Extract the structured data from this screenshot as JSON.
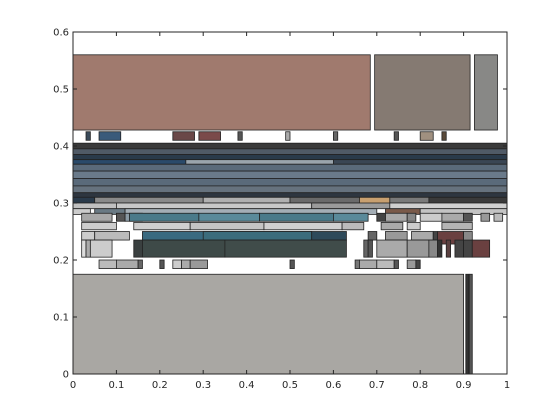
{
  "chart_data": {
    "type": "treemap",
    "xlim": [
      0,
      1
    ],
    "ylim": [
      0,
      0.6
    ],
    "x_ticks": [
      "0",
      "0.1",
      "0.2",
      "0.3",
      "0.4",
      "0.5",
      "0.6",
      "0.7",
      "0.8",
      "0.9",
      "1"
    ],
    "y_ticks": [
      "0",
      "0.1",
      "0.2",
      "0.3",
      "0.4",
      "0.5",
      "0.6"
    ],
    "grid": false,
    "rectangles": [
      {
        "x0": 0.0,
        "x1": 0.685,
        "y0": 0.428,
        "y1": 0.56,
        "color": "#a07a6e"
      },
      {
        "x0": 0.695,
        "x1": 0.915,
        "y0": 0.428,
        "y1": 0.56,
        "color": "#857a72"
      },
      {
        "x0": 0.925,
        "x1": 0.978,
        "y0": 0.428,
        "y1": 0.56,
        "color": "#888886"
      },
      {
        "x0": 0.03,
        "x1": 0.04,
        "y0": 0.41,
        "y1": 0.425,
        "color": "#3a4a5a"
      },
      {
        "x0": 0.06,
        "x1": 0.11,
        "y0": 0.41,
        "y1": 0.425,
        "color": "#3a5a7a"
      },
      {
        "x0": 0.23,
        "x1": 0.28,
        "y0": 0.41,
        "y1": 0.425,
        "color": "#6a4848"
      },
      {
        "x0": 0.29,
        "x1": 0.34,
        "y0": 0.41,
        "y1": 0.425,
        "color": "#7a4a4a"
      },
      {
        "x0": 0.38,
        "x1": 0.39,
        "y0": 0.41,
        "y1": 0.425,
        "color": "#555555"
      },
      {
        "x0": 0.49,
        "x1": 0.5,
        "y0": 0.41,
        "y1": 0.425,
        "color": "#aaaaaa"
      },
      {
        "x0": 0.6,
        "x1": 0.61,
        "y0": 0.41,
        "y1": 0.425,
        "color": "#666666"
      },
      {
        "x0": 0.74,
        "x1": 0.75,
        "y0": 0.41,
        "y1": 0.425,
        "color": "#555555"
      },
      {
        "x0": 0.8,
        "x1": 0.83,
        "y0": 0.41,
        "y1": 0.425,
        "color": "#a09080"
      },
      {
        "x0": 0.85,
        "x1": 0.86,
        "y0": 0.41,
        "y1": 0.425,
        "color": "#5a4a3a"
      },
      {
        "x0": 0.0,
        "x1": 1.0,
        "y0": 0.395,
        "y1": 0.405,
        "color": "#3a3a3a"
      },
      {
        "x0": 0.0,
        "x1": 1.0,
        "y0": 0.385,
        "y1": 0.395,
        "color": "#505a66"
      },
      {
        "x0": 0.0,
        "x1": 1.0,
        "y0": 0.376,
        "y1": 0.385,
        "color": "#2a3a4a"
      },
      {
        "x0": 0.0,
        "x1": 0.26,
        "y0": 0.368,
        "y1": 0.376,
        "color": "#2a4a6a"
      },
      {
        "x0": 0.26,
        "x1": 0.6,
        "y0": 0.368,
        "y1": 0.376,
        "color": "#9aa4ac"
      },
      {
        "x0": 0.6,
        "x1": 1.0,
        "y0": 0.368,
        "y1": 0.376,
        "color": "#3a4654"
      },
      {
        "x0": 0.0,
        "x1": 1.0,
        "y0": 0.356,
        "y1": 0.368,
        "color": "#5a6a7a"
      },
      {
        "x0": 0.0,
        "x1": 1.0,
        "y0": 0.343,
        "y1": 0.356,
        "color": "#6a7a8a"
      },
      {
        "x0": 0.0,
        "x1": 1.0,
        "y0": 0.33,
        "y1": 0.343,
        "color": "#5a6a7a"
      },
      {
        "x0": 0.0,
        "x1": 1.0,
        "y0": 0.318,
        "y1": 0.33,
        "color": "#66727e"
      },
      {
        "x0": 0.0,
        "x1": 1.0,
        "y0": 0.31,
        "y1": 0.318,
        "color": "#2e3640"
      },
      {
        "x0": 0.0,
        "x1": 0.05,
        "y0": 0.3,
        "y1": 0.31,
        "color": "#2a3a4a"
      },
      {
        "x0": 0.05,
        "x1": 0.3,
        "y0": 0.3,
        "y1": 0.31,
        "color": "#8a8a8a"
      },
      {
        "x0": 0.3,
        "x1": 0.5,
        "y0": 0.3,
        "y1": 0.31,
        "color": "#b0b0b0"
      },
      {
        "x0": 0.5,
        "x1": 0.66,
        "y0": 0.3,
        "y1": 0.31,
        "color": "#6a6a6a"
      },
      {
        "x0": 0.66,
        "x1": 0.73,
        "y0": 0.296,
        "y1": 0.31,
        "color": "#c8a070"
      },
      {
        "x0": 0.73,
        "x1": 0.82,
        "y0": 0.3,
        "y1": 0.31,
        "color": "#7a7a7a"
      },
      {
        "x0": 0.82,
        "x1": 1.0,
        "y0": 0.3,
        "y1": 0.31,
        "color": "#3a3a3a"
      },
      {
        "x0": 0.0,
        "x1": 0.1,
        "y0": 0.29,
        "y1": 0.3,
        "color": "#c0c0c0"
      },
      {
        "x0": 0.1,
        "x1": 0.55,
        "y0": 0.29,
        "y1": 0.3,
        "color": "#c8c8c8"
      },
      {
        "x0": 0.55,
        "x1": 0.73,
        "y0": 0.29,
        "y1": 0.3,
        "color": "#9a9a9a"
      },
      {
        "x0": 0.73,
        "x1": 1.0,
        "y0": 0.29,
        "y1": 0.3,
        "color": "#cfcfcf"
      },
      {
        "x0": 0.0,
        "x1": 0.04,
        "y0": 0.28,
        "y1": 0.29,
        "color": "#cccccc"
      },
      {
        "x0": 0.05,
        "x1": 0.12,
        "y0": 0.28,
        "y1": 0.29,
        "color": "#6a7a84"
      },
      {
        "x0": 0.12,
        "x1": 0.7,
        "y0": 0.28,
        "y1": 0.29,
        "color": "#a4aeb6"
      },
      {
        "x0": 0.72,
        "x1": 0.8,
        "y0": 0.28,
        "y1": 0.29,
        "color": "#7a5a4a"
      },
      {
        "x0": 0.8,
        "x1": 1.0,
        "y0": 0.28,
        "y1": 0.29,
        "color": "#c4c4c4"
      },
      {
        "x0": 0.02,
        "x1": 0.09,
        "y0": 0.268,
        "y1": 0.282,
        "color": "#a8a8a8"
      },
      {
        "x0": 0.1,
        "x1": 0.12,
        "y0": 0.268,
        "y1": 0.282,
        "color": "#555555"
      },
      {
        "x0": 0.12,
        "x1": 0.16,
        "y0": 0.268,
        "y1": 0.282,
        "color": "#8a9aa4"
      },
      {
        "x0": 0.13,
        "x1": 0.29,
        "y0": 0.268,
        "y1": 0.282,
        "color": "#4a7a8a"
      },
      {
        "x0": 0.29,
        "x1": 0.43,
        "y0": 0.268,
        "y1": 0.282,
        "color": "#5a8a9a"
      },
      {
        "x0": 0.43,
        "x1": 0.6,
        "y0": 0.268,
        "y1": 0.282,
        "color": "#4a7a8a"
      },
      {
        "x0": 0.6,
        "x1": 0.68,
        "y0": 0.268,
        "y1": 0.282,
        "color": "#5a8a9a"
      },
      {
        "x0": 0.7,
        "x1": 0.72,
        "y0": 0.268,
        "y1": 0.282,
        "color": "#444444"
      },
      {
        "x0": 0.72,
        "x1": 0.77,
        "y0": 0.268,
        "y1": 0.282,
        "color": "#aaaaaa"
      },
      {
        "x0": 0.77,
        "x1": 0.79,
        "y0": 0.268,
        "y1": 0.282,
        "color": "#888888"
      },
      {
        "x0": 0.8,
        "x1": 0.85,
        "y0": 0.268,
        "y1": 0.282,
        "color": "#cccccc"
      },
      {
        "x0": 0.85,
        "x1": 0.9,
        "y0": 0.268,
        "y1": 0.282,
        "color": "#aaaaaa"
      },
      {
        "x0": 0.9,
        "x1": 0.92,
        "y0": 0.268,
        "y1": 0.282,
        "color": "#555555"
      },
      {
        "x0": 0.94,
        "x1": 0.96,
        "y0": 0.268,
        "y1": 0.282,
        "color": "#999999"
      },
      {
        "x0": 0.97,
        "x1": 0.99,
        "y0": 0.268,
        "y1": 0.282,
        "color": "#bbbbbb"
      },
      {
        "x0": 0.02,
        "x1": 0.1,
        "y0": 0.253,
        "y1": 0.266,
        "color": "#cccccc"
      },
      {
        "x0": 0.14,
        "x1": 0.27,
        "y0": 0.253,
        "y1": 0.266,
        "color": "#cfcfcf"
      },
      {
        "x0": 0.27,
        "x1": 0.44,
        "y0": 0.253,
        "y1": 0.266,
        "color": "#c4c4c4"
      },
      {
        "x0": 0.44,
        "x1": 0.62,
        "y0": 0.253,
        "y1": 0.266,
        "color": "#d0d0d0"
      },
      {
        "x0": 0.62,
        "x1": 0.67,
        "y0": 0.253,
        "y1": 0.266,
        "color": "#bbbbbb"
      },
      {
        "x0": 0.71,
        "x1": 0.76,
        "y0": 0.253,
        "y1": 0.266,
        "color": "#aaaaaa"
      },
      {
        "x0": 0.77,
        "x1": 0.8,
        "y0": 0.253,
        "y1": 0.266,
        "color": "#cccccc"
      },
      {
        "x0": 0.85,
        "x1": 0.92,
        "y0": 0.253,
        "y1": 0.266,
        "color": "#b4b4b4"
      },
      {
        "x0": 0.16,
        "x1": 0.55,
        "y0": 0.235,
        "y1": 0.25,
        "color": "#3a6a80"
      },
      {
        "x0": 0.3,
        "x1": 0.55,
        "y0": 0.235,
        "y1": 0.25,
        "color": "#3c6c7c"
      },
      {
        "x0": 0.55,
        "x1": 0.63,
        "y0": 0.235,
        "y1": 0.25,
        "color": "#2e4a5a"
      },
      {
        "x0": 0.02,
        "x1": 0.05,
        "y0": 0.235,
        "y1": 0.25,
        "color": "#cccccc"
      },
      {
        "x0": 0.05,
        "x1": 0.13,
        "y0": 0.235,
        "y1": 0.25,
        "color": "#bbbbbb"
      },
      {
        "x0": 0.68,
        "x1": 0.7,
        "y0": 0.235,
        "y1": 0.25,
        "color": "#666666"
      },
      {
        "x0": 0.72,
        "x1": 0.77,
        "y0": 0.235,
        "y1": 0.25,
        "color": "#999999"
      },
      {
        "x0": 0.78,
        "x1": 0.83,
        "y0": 0.235,
        "y1": 0.25,
        "color": "#aaaaaa"
      },
      {
        "x0": 0.83,
        "x1": 0.84,
        "y0": 0.235,
        "y1": 0.25,
        "color": "#444444"
      },
      {
        "x0": 0.84,
        "x1": 0.9,
        "y0": 0.228,
        "y1": 0.25,
        "color": "#6a4040"
      },
      {
        "x0": 0.9,
        "x1": 0.92,
        "y0": 0.228,
        "y1": 0.25,
        "color": "#888888"
      },
      {
        "x0": 0.02,
        "x1": 0.03,
        "y0": 0.205,
        "y1": 0.235,
        "color": "#dddddd"
      },
      {
        "x0": 0.03,
        "x1": 0.04,
        "y0": 0.205,
        "y1": 0.235,
        "color": "#aaaaaa"
      },
      {
        "x0": 0.04,
        "x1": 0.09,
        "y0": 0.205,
        "y1": 0.235,
        "color": "#cccccc"
      },
      {
        "x0": 0.14,
        "x1": 0.16,
        "y0": 0.205,
        "y1": 0.235,
        "color": "#3a4040"
      },
      {
        "x0": 0.16,
        "x1": 0.35,
        "y0": 0.205,
        "y1": 0.235,
        "color": "#3e4a48"
      },
      {
        "x0": 0.35,
        "x1": 0.63,
        "y0": 0.205,
        "y1": 0.235,
        "color": "#404c4a"
      },
      {
        "x0": 0.67,
        "x1": 0.68,
        "y0": 0.205,
        "y1": 0.235,
        "color": "#666666"
      },
      {
        "x0": 0.68,
        "x1": 0.69,
        "y0": 0.205,
        "y1": 0.235,
        "color": "#555555"
      },
      {
        "x0": 0.7,
        "x1": 0.77,
        "y0": 0.205,
        "y1": 0.235,
        "color": "#aaaaaa"
      },
      {
        "x0": 0.77,
        "x1": 0.82,
        "y0": 0.205,
        "y1": 0.235,
        "color": "#999999"
      },
      {
        "x0": 0.82,
        "x1": 0.84,
        "y0": 0.205,
        "y1": 0.235,
        "color": "#888888"
      },
      {
        "x0": 0.84,
        "x1": 0.85,
        "y0": 0.205,
        "y1": 0.235,
        "color": "#333333"
      },
      {
        "x0": 0.86,
        "x1": 0.87,
        "y0": 0.205,
        "y1": 0.235,
        "color": "#5a4040"
      },
      {
        "x0": 0.88,
        "x1": 0.9,
        "y0": 0.205,
        "y1": 0.235,
        "color": "#444444"
      },
      {
        "x0": 0.9,
        "x1": 0.92,
        "y0": 0.205,
        "y1": 0.235,
        "color": "#444444"
      },
      {
        "x0": 0.92,
        "x1": 0.96,
        "y0": 0.205,
        "y1": 0.235,
        "color": "#6a4040"
      },
      {
        "x0": 0.06,
        "x1": 0.1,
        "y0": 0.185,
        "y1": 0.2,
        "color": "#bbbbbb"
      },
      {
        "x0": 0.1,
        "x1": 0.15,
        "y0": 0.185,
        "y1": 0.2,
        "color": "#aaaaaa"
      },
      {
        "x0": 0.15,
        "x1": 0.16,
        "y0": 0.185,
        "y1": 0.2,
        "color": "#666666"
      },
      {
        "x0": 0.2,
        "x1": 0.21,
        "y0": 0.185,
        "y1": 0.2,
        "color": "#555555"
      },
      {
        "x0": 0.23,
        "x1": 0.25,
        "y0": 0.185,
        "y1": 0.2,
        "color": "#cccccc"
      },
      {
        "x0": 0.25,
        "x1": 0.27,
        "y0": 0.185,
        "y1": 0.2,
        "color": "#aaaaaa"
      },
      {
        "x0": 0.27,
        "x1": 0.31,
        "y0": 0.185,
        "y1": 0.2,
        "color": "#999999"
      },
      {
        "x0": 0.5,
        "x1": 0.51,
        "y0": 0.185,
        "y1": 0.2,
        "color": "#555555"
      },
      {
        "x0": 0.65,
        "x1": 0.66,
        "y0": 0.185,
        "y1": 0.2,
        "color": "#777777"
      },
      {
        "x0": 0.66,
        "x1": 0.7,
        "y0": 0.185,
        "y1": 0.2,
        "color": "#aaaaaa"
      },
      {
        "x0": 0.7,
        "x1": 0.74,
        "y0": 0.185,
        "y1": 0.2,
        "color": "#bbbbbb"
      },
      {
        "x0": 0.74,
        "x1": 0.75,
        "y0": 0.185,
        "y1": 0.2,
        "color": "#555555"
      },
      {
        "x0": 0.77,
        "x1": 0.79,
        "y0": 0.185,
        "y1": 0.2,
        "color": "#999999"
      },
      {
        "x0": 0.79,
        "x1": 0.8,
        "y0": 0.185,
        "y1": 0.2,
        "color": "#444444"
      },
      {
        "x0": 0.0,
        "x1": 0.9,
        "y0": 0.0,
        "y1": 0.175,
        "color": "#a9a7a3"
      },
      {
        "x0": 0.905,
        "x1": 0.912,
        "y0": 0.0,
        "y1": 0.175,
        "color": "#333333"
      },
      {
        "x0": 0.913,
        "x1": 0.92,
        "y0": 0.0,
        "y1": 0.175,
        "color": "#555555"
      }
    ]
  }
}
